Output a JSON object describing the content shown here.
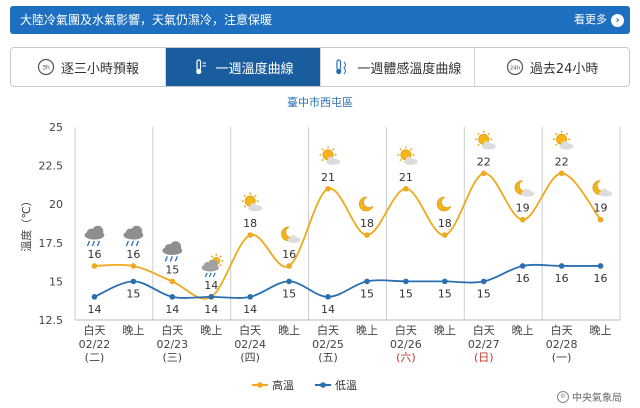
{
  "banner": {
    "message": "大陸冷氣團及水氣影響，天氣仍濕冷，注意保暖",
    "more_label": "看更多"
  },
  "tabs": [
    {
      "label": "逐三小時預報",
      "icon": "clock-3h-icon",
      "active": false
    },
    {
      "label": "一週溫度曲線",
      "icon": "thermometer-icon",
      "active": true
    },
    {
      "label": "一週體感溫度曲線",
      "icon": "feels-like-thermometer-icon",
      "active": false
    },
    {
      "label": "過去24小時",
      "icon": "clock-24h-icon",
      "active": false
    }
  ],
  "footer": {
    "credit": "中央氣象局"
  },
  "chart_data": {
    "type": "line",
    "title": "臺中市西屯區",
    "xlabel": "",
    "ylabel": "溫度（℃）",
    "ylim": [
      12.5,
      25
    ],
    "yticks": [
      "12.5",
      "15",
      "17.5",
      "20",
      "22.5",
      "25"
    ],
    "grid": "vertical-per-day",
    "legend_position": "bottom-center",
    "periods": [
      "白天",
      "晚上",
      "白天",
      "晚上",
      "白天",
      "晚上",
      "白天",
      "晚上",
      "白天",
      "晚上",
      "白天",
      "晚上",
      "白天",
      "晚上"
    ],
    "days": [
      {
        "date": "02/22",
        "weekday": "(二)",
        "holiday": false
      },
      {
        "date": "02/23",
        "weekday": "(三)",
        "holiday": false
      },
      {
        "date": "02/24",
        "weekday": "(四)",
        "holiday": false
      },
      {
        "date": "02/25",
        "weekday": "(五)",
        "holiday": false
      },
      {
        "date": "02/26",
        "weekday": "(六)",
        "holiday": true
      },
      {
        "date": "02/27",
        "weekday": "(日)",
        "holiday": true
      },
      {
        "date": "02/28",
        "weekday": "(一)",
        "holiday": false
      }
    ],
    "series": [
      {
        "name": "高溫",
        "color": "#f0a81c",
        "values": [
          16,
          16,
          15,
          14,
          18,
          16,
          21,
          18,
          21,
          18,
          22,
          19,
          22,
          19
        ]
      },
      {
        "name": "低溫",
        "color": "#2a6fb0",
        "values": [
          14,
          15,
          14,
          14,
          14,
          15,
          14,
          15,
          15,
          15,
          15,
          16,
          16,
          16
        ]
      }
    ],
    "weather_icons": [
      "rain-cloud-icon",
      "rain-cloud-icon",
      "rain-cloud-icon",
      "cloud-rain-sun-icon",
      "sun-cloud-icon",
      "moon-cloud-icon",
      "sun-cloud-icon",
      "moon-icon",
      "sun-cloud-icon",
      "moon-icon",
      "sun-cloud-icon",
      "moon-cloud-icon",
      "sun-cloud-icon",
      "moon-cloud-icon"
    ]
  }
}
